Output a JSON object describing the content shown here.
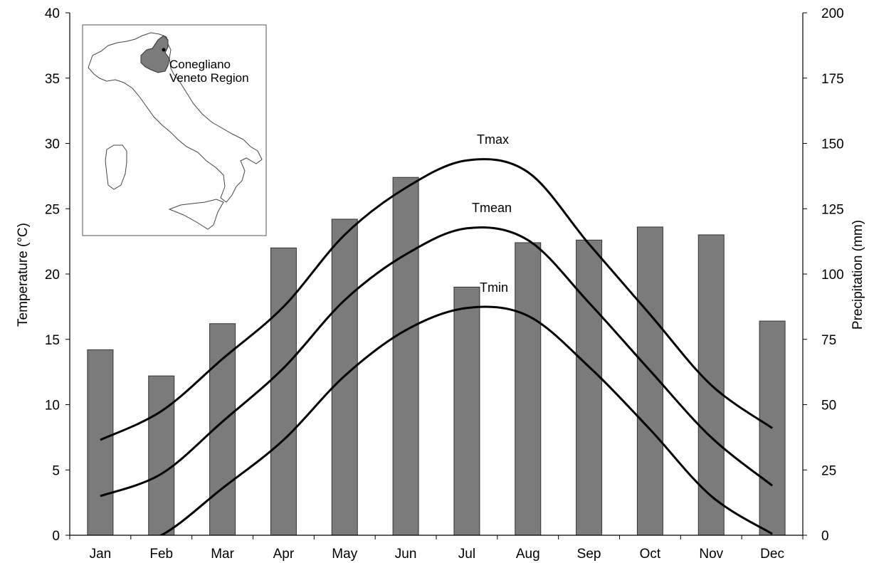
{
  "chart_data": {
    "type": "bar",
    "categories": [
      "Jan",
      "Feb",
      "Mar",
      "Apr",
      "May",
      "Jun",
      "Jul",
      "Aug",
      "Sep",
      "Oct",
      "Nov",
      "Dec"
    ],
    "series": [
      {
        "name": "Precipitation",
        "axis": "right",
        "type": "bar",
        "values": [
          71,
          61,
          81,
          110,
          121,
          137,
          95,
          112,
          113,
          118,
          115,
          82
        ]
      },
      {
        "name": "Tmax",
        "axis": "left",
        "type": "line",
        "values": [
          7.3,
          9.5,
          13.5,
          17.5,
          23.0,
          26.6,
          28.7,
          27.8,
          22.3,
          16.9,
          11.5,
          8.2
        ]
      },
      {
        "name": "Tmean",
        "axis": "left",
        "type": "line",
        "values": [
          3.0,
          4.7,
          8.7,
          12.8,
          18.0,
          21.5,
          23.5,
          22.6,
          17.8,
          12.6,
          7.5,
          3.8
        ]
      },
      {
        "name": "Tmin",
        "axis": "left",
        "type": "line",
        "values": [
          -1.5,
          0.0,
          3.6,
          7.3,
          12.2,
          15.7,
          17.4,
          16.8,
          12.9,
          8.1,
          3.0,
          0.1
        ]
      }
    ],
    "xlabel": "",
    "ylabel": "Temperature (°C)",
    "ylabel_right": "Precipitation (mm)",
    "ylim": [
      0,
      40
    ],
    "ylim_right": [
      0,
      200
    ],
    "yticks": [
      "0",
      "5",
      "10",
      "15",
      "20",
      "25",
      "30",
      "35",
      "40"
    ],
    "yticks_right": [
      "0",
      "25",
      "50",
      "75",
      "100",
      "125",
      "150",
      "175",
      "200"
    ],
    "grid": false,
    "colors": {
      "bars": "#7b7b7b",
      "lines": "#000000",
      "region": "#7b7b7b"
    }
  },
  "inset_map": {
    "city_label": "Conegliano",
    "region_label": "Veneto Region"
  }
}
